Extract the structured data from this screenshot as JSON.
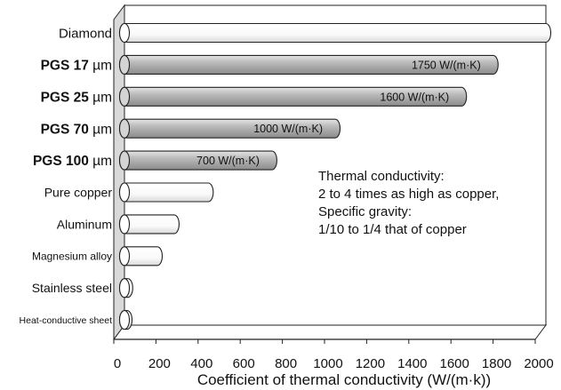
{
  "chart_data": {
    "type": "bar",
    "orientation": "horizontal",
    "categories": [
      "Diamond",
      "PGS 17 µm",
      "PGS 25 µm",
      "PGS 70 µm",
      "PGS 100 µm",
      "Pure copper",
      "Aluminum",
      "Magnesium alloy",
      "Stainless steel",
      "Heat-conductive sheet"
    ],
    "values": [
      2000,
      1750,
      1600,
      1000,
      700,
      398,
      236,
      156,
      16,
      5
    ],
    "value_labels": [
      "",
      "1750 W/(m·K)",
      "1600 W/(m·K)",
      "1000 W/(m·K)",
      "700 W/(m·K)",
      "",
      "",
      "",
      "",
      ""
    ],
    "highlighted": [
      false,
      true,
      true,
      true,
      true,
      false,
      false,
      false,
      false,
      false
    ],
    "xlabel": "Coefficient of thermal conductivity (W/(m·k))",
    "xlim": [
      0,
      2000
    ],
    "xticks": [
      "0",
      "200",
      "400",
      "600",
      "800",
      "1000",
      "1200",
      "1400",
      "1600",
      "1800",
      "2000"
    ],
    "grid": false,
    "style": "3d-cylinder",
    "colors": {
      "highlight": "#bdbdbd",
      "plain": "#ffffff",
      "outline": "#222222",
      "panel_side": "#d9d9d9"
    },
    "annotation": [
      "Thermal conductivity:",
      "2 to 4 times as high as copper,",
      "Specific gravity:",
      "1/10 to 1/4 that of copper"
    ]
  }
}
